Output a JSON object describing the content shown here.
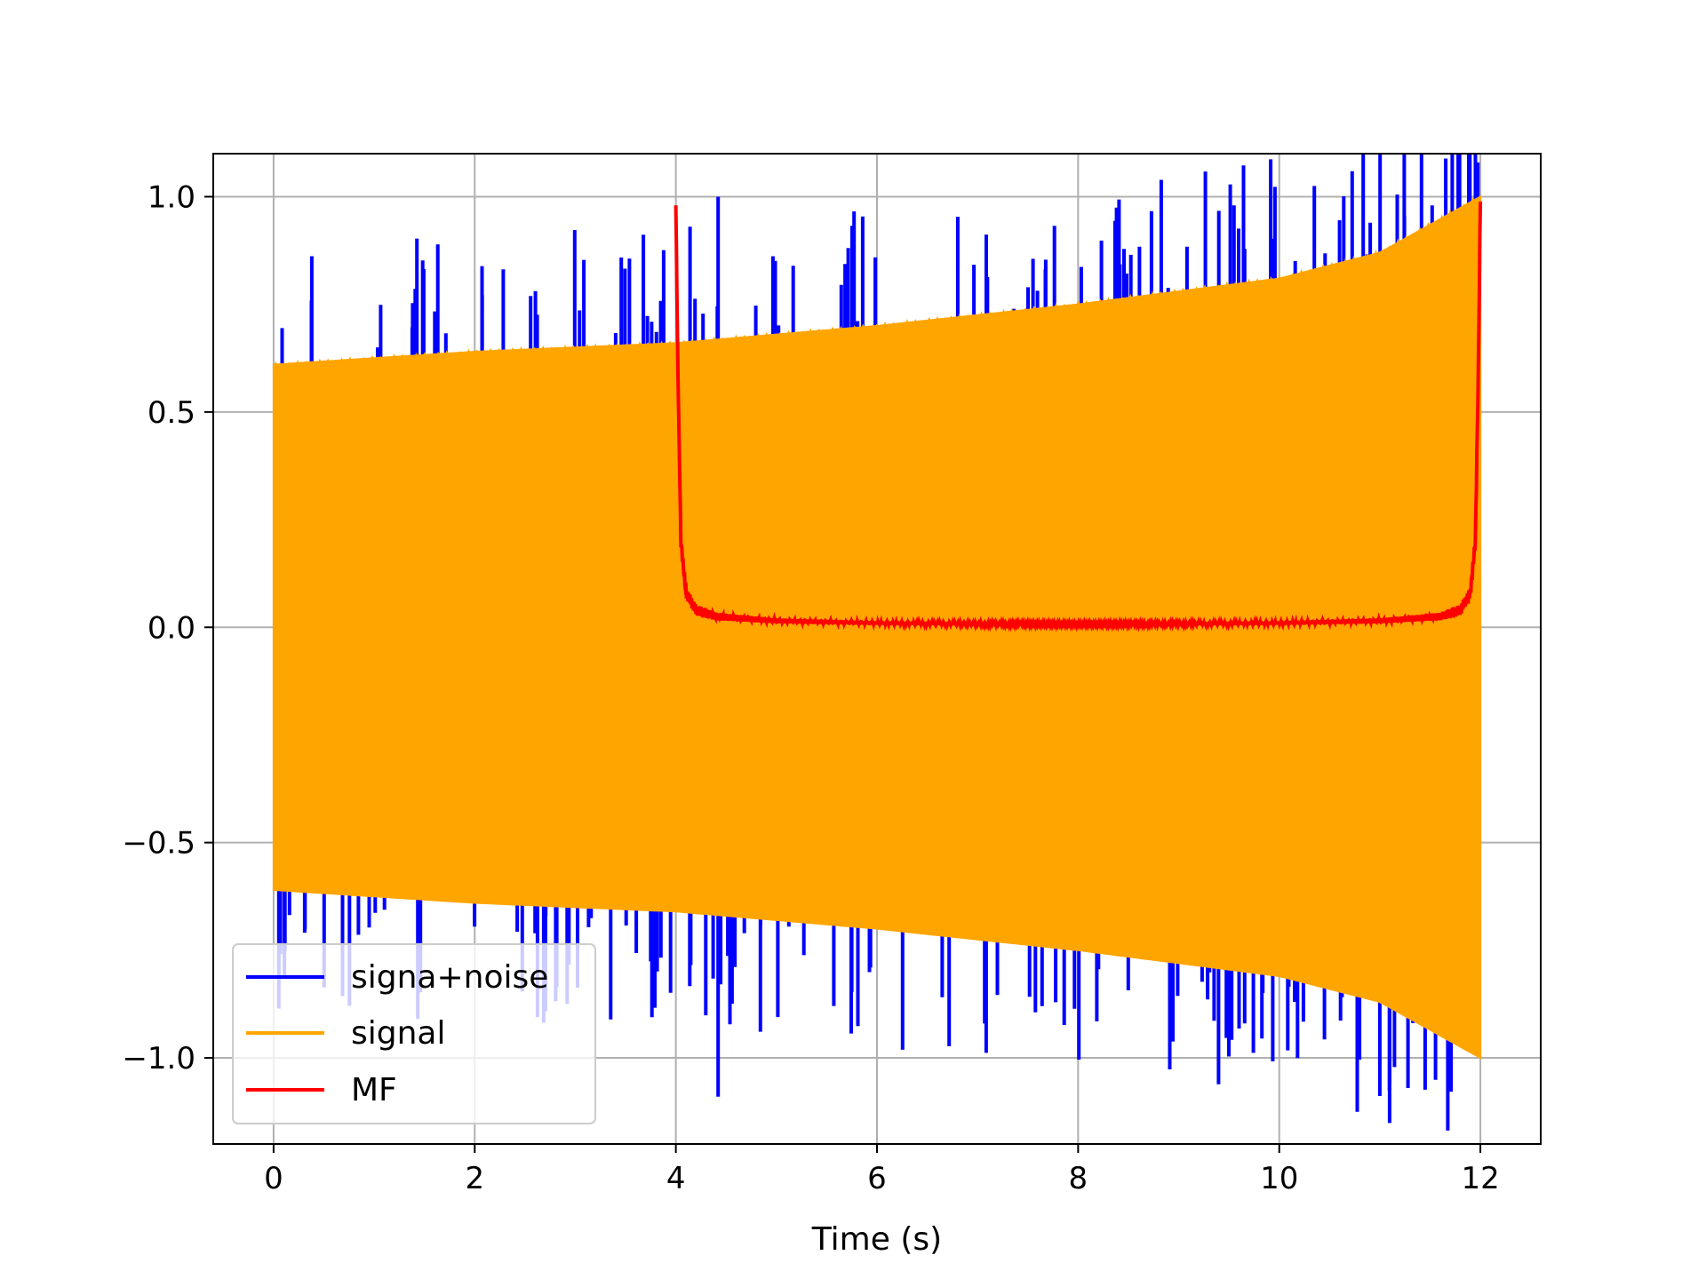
{
  "chart_data": {
    "type": "line",
    "xlabel": "Time (s)",
    "ylabel": "",
    "xlim": [
      -0.6,
      12.6
    ],
    "ylim": [
      -1.2,
      1.1
    ],
    "x_ticks": [
      0,
      2,
      4,
      6,
      8,
      10,
      12
    ],
    "x_tick_labels": [
      "0",
      "2",
      "4",
      "6",
      "8",
      "10",
      "12"
    ],
    "y_ticks": [
      -1.0,
      -0.5,
      0.0,
      0.5,
      1.0
    ],
    "y_tick_labels": [
      "−1.0",
      "−0.5",
      "0.0",
      "0.5",
      "1.0"
    ],
    "grid": true,
    "legend_position": "lower-left",
    "series": [
      {
        "name": "signa+noise",
        "color": "#0000ff",
        "kind": "noisy-spikes",
        "x_range": [
          0,
          12
        ],
        "notable_peaks": [
          {
            "x": 4.42,
            "y": 1.0
          },
          {
            "x": 4.42,
            "y": -1.09
          },
          {
            "x": 11.28,
            "y": -1.07
          },
          {
            "x": 9.55,
            "y": 0.98
          },
          {
            "x": 11.52,
            "y": 0.98
          }
        ]
      },
      {
        "name": "signal",
        "color": "#ffa500",
        "kind": "chirp-envelope",
        "x": [
          0,
          2,
          4,
          6,
          8,
          10,
          11,
          12
        ],
        "upper_envelope": [
          0.61,
          0.64,
          0.66,
          0.7,
          0.75,
          0.81,
          0.87,
          1.0
        ],
        "lower_envelope": [
          -0.61,
          -0.64,
          -0.66,
          -0.7,
          -0.75,
          -0.81,
          -0.87,
          -1.0
        ]
      },
      {
        "name": "MF",
        "color": "#ff0000",
        "kind": "line",
        "x": [
          4.0,
          4.02,
          4.05,
          4.1,
          4.2,
          4.4,
          5.0,
          6.0,
          7.0,
          8.0,
          9.0,
          10.0,
          11.0,
          11.6,
          11.8,
          11.9,
          11.95,
          11.98,
          12.0
        ],
        "y": [
          0.98,
          0.6,
          0.2,
          0.08,
          0.04,
          0.025,
          0.015,
          0.01,
          0.008,
          0.007,
          0.008,
          0.01,
          0.015,
          0.025,
          0.04,
          0.08,
          0.2,
          0.6,
          1.0
        ]
      }
    ]
  },
  "colors": {
    "grid": "#b0b0b0",
    "axes": "#000000",
    "legend_border": "#cccccc"
  }
}
